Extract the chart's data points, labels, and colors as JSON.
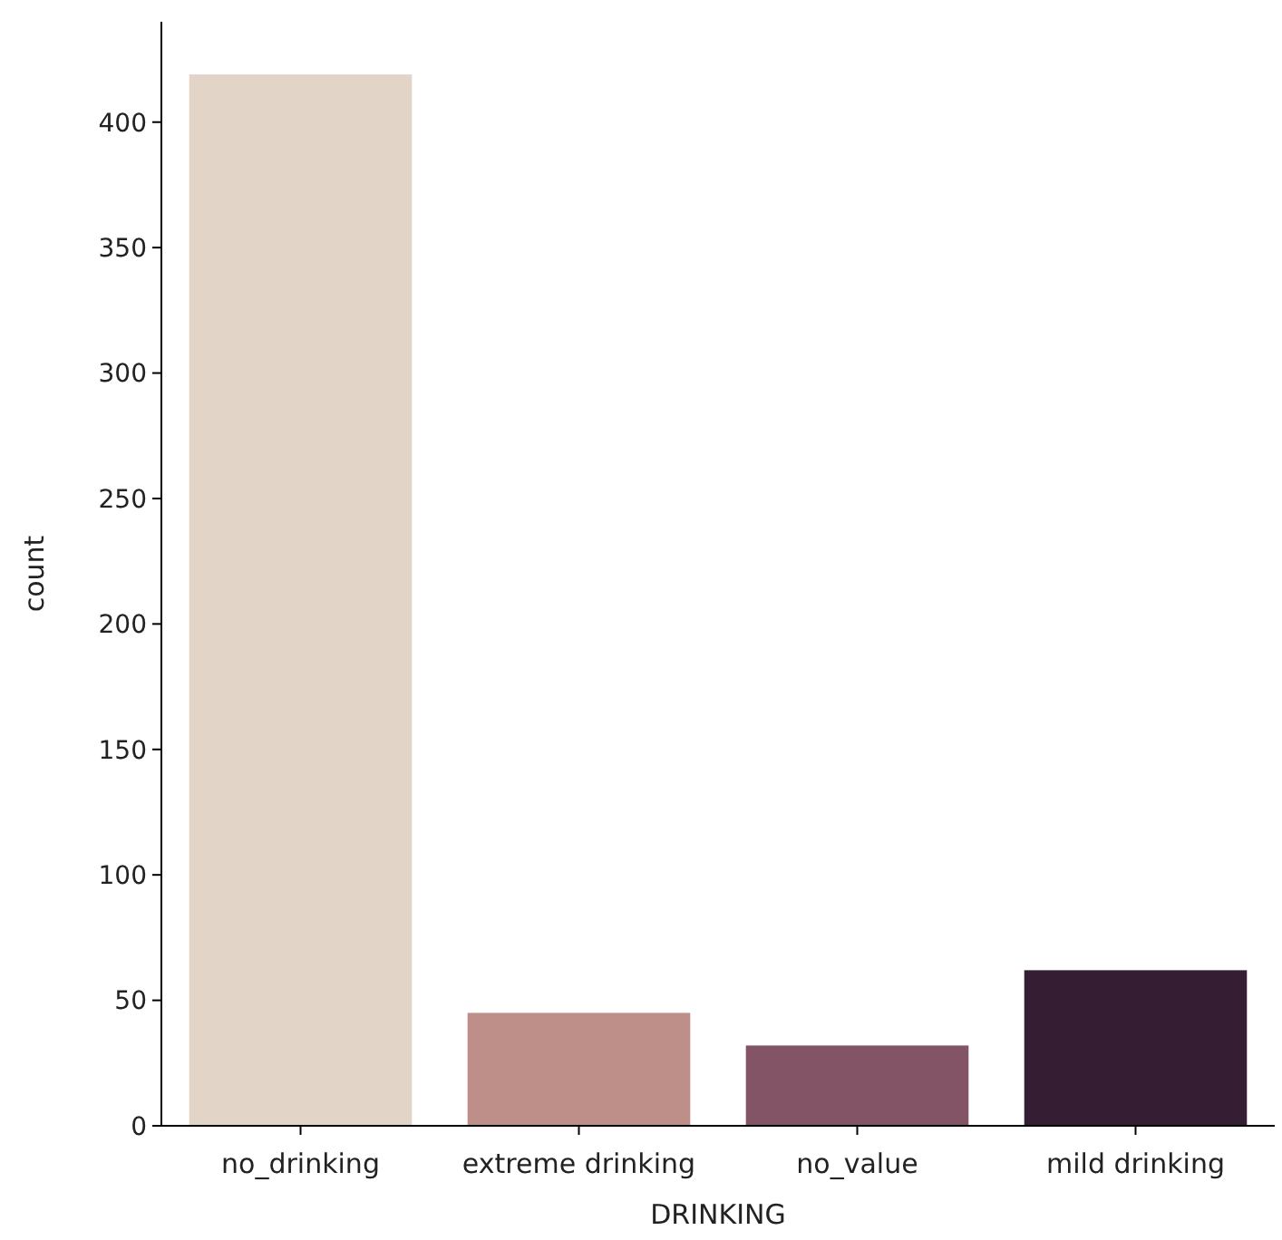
{
  "chart_data": {
    "type": "bar",
    "xlabel": "DRINKING",
    "ylabel": "count",
    "categories": [
      "no_drinking",
      "extreme drinking",
      "no_value",
      "mild drinking"
    ],
    "values": [
      419,
      45,
      32,
      62
    ],
    "colors": [
      "#e2d4c6",
      "#bd8f88",
      "#835466",
      "#351e33"
    ],
    "ylim": [
      0,
      440
    ],
    "yticks": [
      0,
      50,
      100,
      150,
      200,
      250,
      300,
      350,
      400
    ],
    "grid": false
  }
}
